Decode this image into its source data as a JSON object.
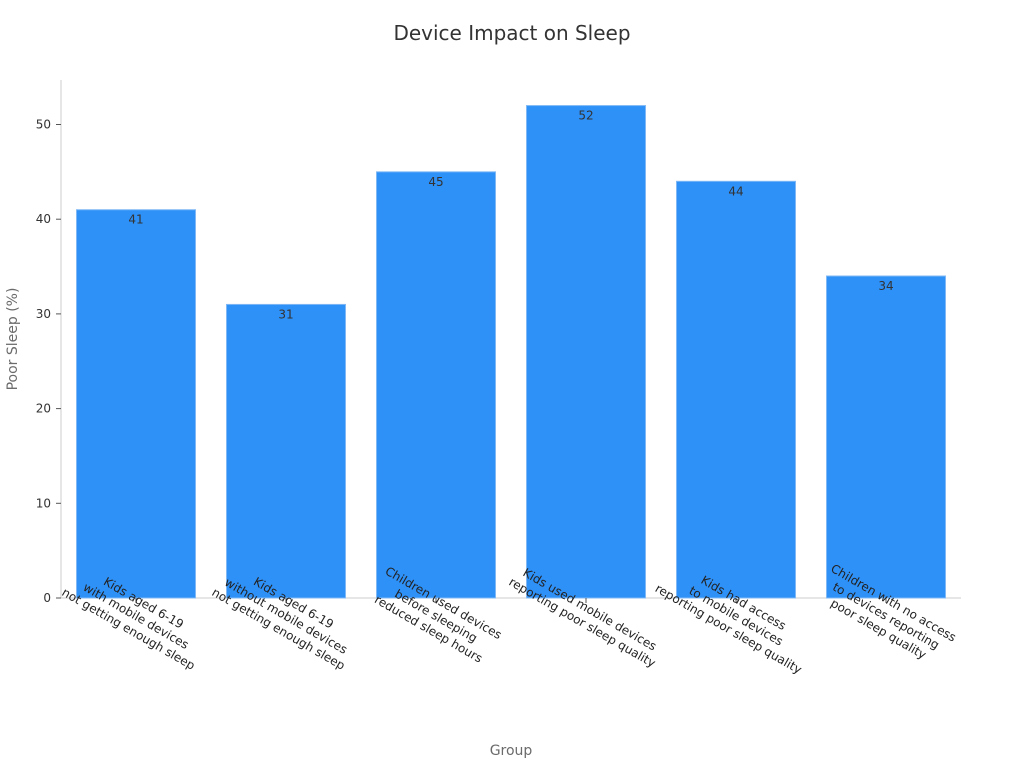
{
  "chart_data": {
    "type": "bar",
    "title": "Device Impact on Sleep",
    "xlabel": "Group",
    "ylabel": "Poor Sleep (%)",
    "ylim": [
      0,
      55
    ],
    "yticks": [
      0,
      10,
      20,
      30,
      40,
      50
    ],
    "grid": false,
    "legend": "none",
    "bar_color": "#2e91f8",
    "categories": [
      [
        "Kids aged 6-19",
        "with mobile devices",
        "not getting enough sleep"
      ],
      [
        "Kids aged 6-19",
        "without mobile devices",
        "not getting enough sleep"
      ],
      [
        "Children used devices",
        "before sleeping",
        "reduced sleep hours"
      ],
      [
        "Kids used mobile devices",
        "reporting poor sleep quality"
      ],
      [
        "Kids had access",
        "to mobile devices",
        "reporting poor sleep quality"
      ],
      [
        "Children with no access",
        "to devices reporting",
        "poor sleep quality"
      ]
    ],
    "values": [
      41,
      31,
      45,
      52,
      44,
      34
    ],
    "data_labels": [
      "41",
      "31",
      "45",
      "52",
      "44",
      "34"
    ]
  }
}
